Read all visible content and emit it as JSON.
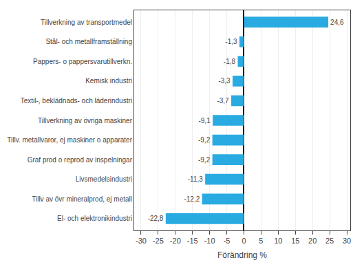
{
  "chart_data": {
    "type": "bar",
    "orientation": "horizontal",
    "categories": [
      "El- och elektronikindustri",
      "Tillv av övr mineralprod, ej metall",
      "Livsmedelsindustri",
      "Graf prod o reprod av inspelningar",
      "Tillv. metallvaror, ej maskiner o apparater",
      "Tillverkning av övriga maskiner",
      "Textil-, beklädnads- och läderindustri",
      "Kemisk industri",
      "Pappers- o pappersvarutillverkn.",
      "Stål- och metallframställning",
      "Tillverkning av transportmedel"
    ],
    "values": [
      -22.8,
      -12.2,
      -11.3,
      -9.2,
      -9.2,
      -9.1,
      -3.7,
      -3.3,
      -1.8,
      -1.3,
      24.6
    ],
    "value_labels": [
      "-22,8",
      "-12,2",
      "-11,3",
      "-9,2",
      "-9,2",
      "-9,1",
      "-3,7",
      "-3,3",
      "-1,8",
      "-1,3",
      "24,6"
    ],
    "data_labels": true,
    "color": "#29abe2",
    "xlabel": "Förändring %",
    "xlim": [
      -32,
      31
    ],
    "xticks": [
      -30,
      -25,
      -20,
      -15,
      -10,
      -5,
      0,
      5,
      10,
      15,
      20,
      25,
      30
    ],
    "grid": true
  }
}
